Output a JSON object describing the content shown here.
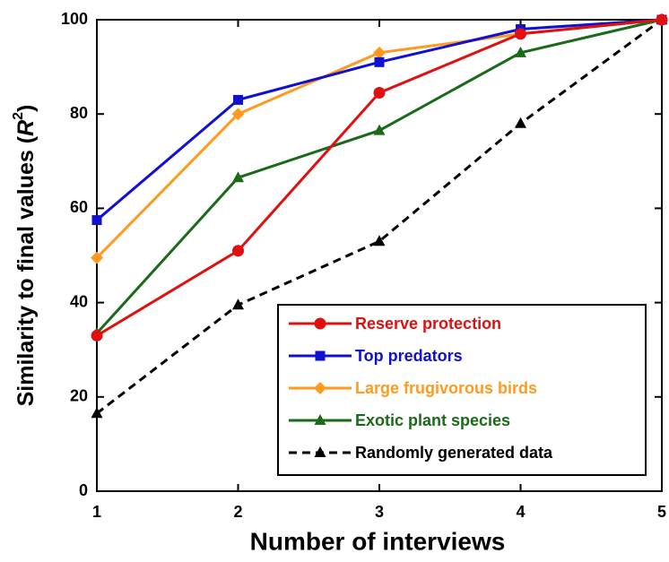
{
  "chart_data": {
    "type": "line",
    "xlabel": "Number of interviews",
    "ylabel": {
      "text": "Similarity to final values (",
      "var": "R",
      "sup": "2",
      "close": ")"
    },
    "x": [
      1,
      2,
      3,
      4,
      5
    ],
    "xlim": [
      1,
      5
    ],
    "xticks": [
      1,
      2,
      3,
      4,
      5
    ],
    "ylim": [
      0,
      100
    ],
    "yticks": [
      0,
      20,
      40,
      60,
      80,
      100
    ],
    "series": [
      {
        "name": "Reserve protection",
        "color": "#e01010",
        "marker": "circle",
        "dashed": false,
        "values": [
          33,
          51,
          84.5,
          97,
          100
        ]
      },
      {
        "name": "Top predators",
        "color": "#1010d0",
        "marker": "square",
        "dashed": false,
        "values": [
          57.5,
          83,
          91,
          98,
          100
        ]
      },
      {
        "name": "Large frugivorous birds",
        "color": "#ff9a1e",
        "marker": "diamond",
        "dashed": false,
        "values": [
          49.5,
          80,
          93,
          97,
          100
        ]
      },
      {
        "name": "Exotic plant species",
        "color": "#1a6a1a",
        "marker": "triangle",
        "dashed": false,
        "values": [
          33.5,
          66.5,
          76.5,
          93,
          100
        ]
      },
      {
        "name": "Randomly generated data",
        "color": "#000000",
        "marker": "triangle",
        "dashed": true,
        "values": [
          16.5,
          39.5,
          53,
          78,
          100
        ]
      }
    ]
  }
}
